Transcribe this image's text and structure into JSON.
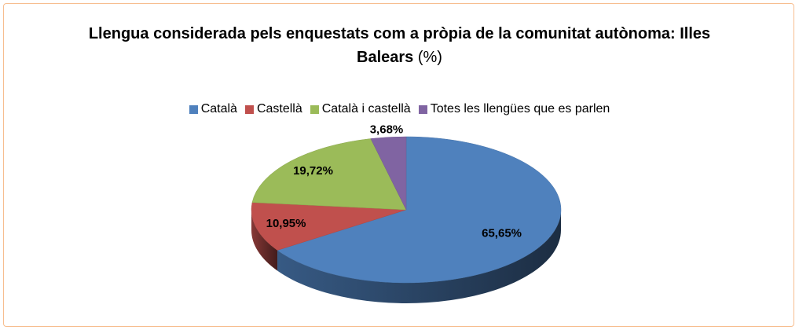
{
  "chart_data": {
    "type": "pie3d",
    "title": "Llengua considerada pels enquestats com a pròpia de la comunitat autònoma: Illes Balears",
    "unit_label": "(%)",
    "categories": [
      "Català",
      "Castellà",
      "Català i castellà",
      "Totes les llengües que es parlen"
    ],
    "values": [
      65.65,
      10.95,
      19.72,
      3.68
    ],
    "value_labels": [
      "65,65%",
      "10,95%",
      "19,72%",
      "3,68%"
    ],
    "colors": [
      "#4f81bd",
      "#c0504d",
      "#9bbb59",
      "#8064a2"
    ],
    "legend": "top"
  }
}
